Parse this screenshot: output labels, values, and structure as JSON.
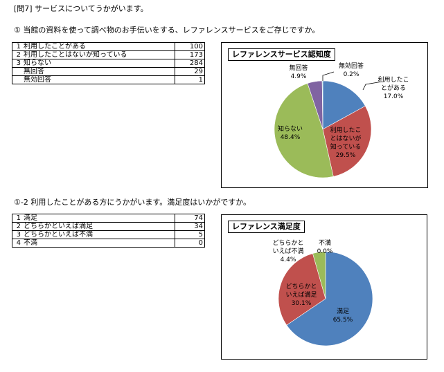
{
  "page": {
    "header": "[問7] サービスについてうかがいます。",
    "q1": "① 当館の資料を使って調べ物のお手伝いをする、レファレンスサービスをご存じですか。",
    "q2": "①-2 利用したことがある方にうかがいます。満足度はいかがですか。"
  },
  "table1": [
    {
      "n": "1",
      "label": "利用したことがある",
      "value": "100"
    },
    {
      "n": "2",
      "label": "利用したことはないが知っている",
      "value": "173"
    },
    {
      "n": "3",
      "label": "知らない",
      "value": "284"
    },
    {
      "n": "",
      "label": "無回答",
      "value": "29"
    },
    {
      "n": "",
      "label": "無効回答",
      "value": "1"
    }
  ],
  "table2": [
    {
      "n": "1",
      "label": "満足",
      "value": "74"
    },
    {
      "n": "2",
      "label": "どちらかといえば満足",
      "value": "34"
    },
    {
      "n": "3",
      "label": "どちらかといえば不満",
      "value": "5"
    },
    {
      "n": "4",
      "label": "不満",
      "value": "0"
    }
  ],
  "chart_data": [
    {
      "type": "pie",
      "title": "レファレンスサービス認知度",
      "slices": [
        {
          "label": [
            "利用したこ",
            "とがある"
          ],
          "pct_label": "17.0%",
          "value": 17.0,
          "color": "#4f81bd"
        },
        {
          "label": [
            "利用したこ",
            "とはないが",
            "知っている"
          ],
          "pct_label": "29.5%",
          "value": 29.5,
          "color": "#c0504d"
        },
        {
          "label": [
            "知らない"
          ],
          "pct_label": "48.4%",
          "value": 48.4,
          "color": "#9bbb59"
        },
        {
          "label": [
            "無回答"
          ],
          "pct_label": "4.9%",
          "value": 4.9,
          "color": "#8064a2"
        },
        {
          "label": [
            "無効回答"
          ],
          "pct_label": "0.2%",
          "value": 0.2,
          "color": "#4bacc6"
        }
      ]
    },
    {
      "type": "pie",
      "title": "レファレンス満足度",
      "slices": [
        {
          "label": [
            "満足"
          ],
          "pct_label": "65.5%",
          "value": 65.5,
          "color": "#4f81bd"
        },
        {
          "label": [
            "どちらかと",
            "いえば満足"
          ],
          "pct_label": "30.1%",
          "value": 30.1,
          "color": "#c0504d"
        },
        {
          "label": [
            "どちらかと",
            "いえば不満"
          ],
          "pct_label": "4.4%",
          "value": 4.4,
          "color": "#9bbb59"
        },
        {
          "label": [
            "不満"
          ],
          "pct_label": "0.0%",
          "value": 0.0,
          "color": "#8064a2"
        }
      ]
    }
  ]
}
